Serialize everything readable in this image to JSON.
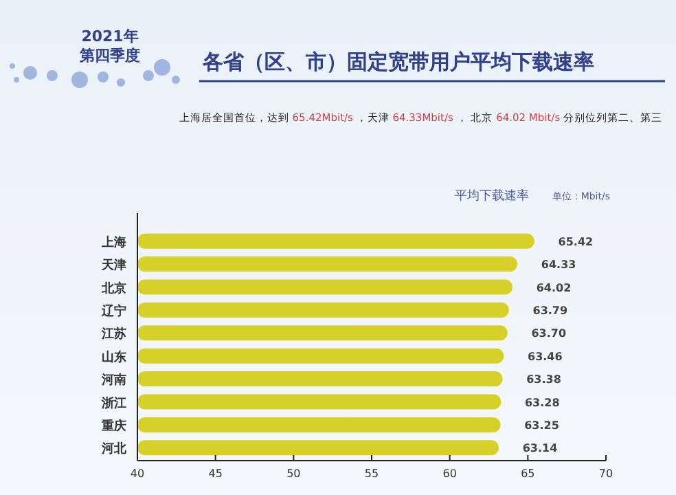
{
  "chart_data": {
    "type": "bar",
    "orientation": "horizontal",
    "title": "各省（区、市）固定宽带用户平均下载速率",
    "subtitle": "上海居全国首位，达到 65.42Mbit/s ，天津 64.33Mbit/s ， 北京 64.02 Mbit/s 分别位列第二、第三",
    "annotations": [
      "2021年",
      "第四季度",
      "平均下载速率",
      "单位：Mbit/s"
    ],
    "categories": [
      "上海",
      "天津",
      "北京",
      "辽宁",
      "江苏",
      "山东",
      "河南",
      "浙江",
      "重庆",
      "河北"
    ],
    "values": [
      65.42,
      64.33,
      64.02,
      63.79,
      63.7,
      63.46,
      63.38,
      63.28,
      63.25,
      63.14
    ],
    "value_labels": [
      "65.42",
      "64.33",
      "64.02",
      "63.79",
      "63.70",
      "63.46",
      "63.38",
      "63.28",
      "63.25",
      "63.14"
    ],
    "color": "#d6d12a",
    "xlim": [
      40,
      70
    ],
    "xticks": [
      40,
      45,
      50,
      55,
      60,
      65,
      70
    ]
  }
}
